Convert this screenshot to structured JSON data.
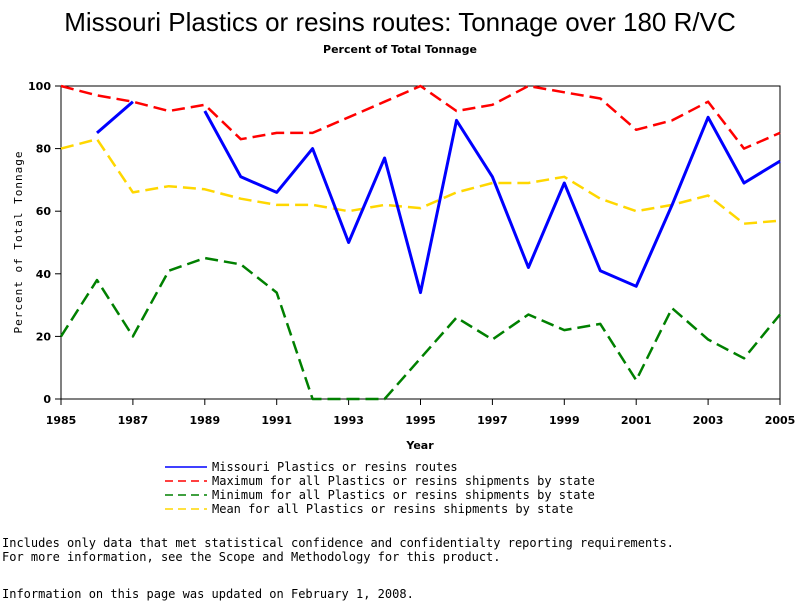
{
  "chart_data": {
    "type": "line",
    "title": "Missouri Plastics or resins routes: Tonnage over 180 R/VC",
    "subtitle": "Percent of Total Tonnage",
    "xlabel": "Year",
    "ylabel": "Percent of Total Tonnage",
    "xlim": [
      1985,
      2005
    ],
    "ylim": [
      0,
      100
    ],
    "xticks": [
      "1985",
      "1987",
      "1989",
      "1991",
      "1993",
      "1995",
      "1997",
      "1999",
      "2001",
      "2003",
      "2005"
    ],
    "yticks": [
      "0",
      "20",
      "40",
      "60",
      "80",
      "100"
    ],
    "grid": false,
    "legend_position": "bottom",
    "series": [
      {
        "name": "Missouri Plastics or resins routes",
        "color": "#0000ff",
        "style": "solid",
        "points": [
          [
            1986,
            85
          ],
          [
            1987,
            95
          ],
          [
            1988,
            null
          ],
          [
            1989,
            92
          ],
          [
            1990,
            71
          ],
          [
            1991,
            66
          ],
          [
            1992,
            80
          ],
          [
            1993,
            50
          ],
          [
            1994,
            77
          ],
          [
            1995,
            34
          ],
          [
            1996,
            89
          ],
          [
            1997,
            71
          ],
          [
            1998,
            42
          ],
          [
            1999,
            69
          ],
          [
            2000,
            41
          ],
          [
            2001,
            36
          ],
          [
            2002,
            62
          ],
          [
            2003,
            90
          ],
          [
            2004,
            69
          ],
          [
            2005,
            76
          ]
        ]
      },
      {
        "name": "Maximum for all Plastics or resins shipments by state",
        "color": "#ff0000",
        "style": "dashed",
        "points": [
          [
            1985,
            100
          ],
          [
            1986,
            97
          ],
          [
            1987,
            95
          ],
          [
            1988,
            92
          ],
          [
            1989,
            94
          ],
          [
            1990,
            83
          ],
          [
            1991,
            85
          ],
          [
            1992,
            85
          ],
          [
            1993,
            90
          ],
          [
            1994,
            95
          ],
          [
            1995,
            100
          ],
          [
            1996,
            92
          ],
          [
            1997,
            94
          ],
          [
            1998,
            100
          ],
          [
            1999,
            98
          ],
          [
            2000,
            96
          ],
          [
            2001,
            86
          ],
          [
            2002,
            89
          ],
          [
            2003,
            95
          ],
          [
            2004,
            80
          ],
          [
            2005,
            85
          ]
        ]
      },
      {
        "name": "Minimum for all Plastics or resins shipments by state",
        "color": "#008000",
        "style": "dashed",
        "points": [
          [
            1985,
            20
          ],
          [
            1986,
            38
          ],
          [
            1987,
            20
          ],
          [
            1988,
            41
          ],
          [
            1989,
            45
          ],
          [
            1990,
            43
          ],
          [
            1991,
            34
          ],
          [
            1992,
            0
          ],
          [
            1993,
            0
          ],
          [
            1994,
            0
          ],
          [
            1995,
            13
          ],
          [
            1996,
            26
          ],
          [
            1997,
            19
          ],
          [
            1998,
            27
          ],
          [
            1999,
            22
          ],
          [
            2000,
            24
          ],
          [
            2001,
            6
          ],
          [
            2002,
            29
          ],
          [
            2003,
            19
          ],
          [
            2004,
            13
          ],
          [
            2005,
            27
          ]
        ]
      },
      {
        "name": "Mean for all Plastics or resins shipments by state",
        "color": "#ffd700",
        "style": "dashed",
        "points": [
          [
            1985,
            80
          ],
          [
            1986,
            83
          ],
          [
            1987,
            66
          ],
          [
            1988,
            68
          ],
          [
            1989,
            67
          ],
          [
            1990,
            64
          ],
          [
            1991,
            62
          ],
          [
            1992,
            62
          ],
          [
            1993,
            60
          ],
          [
            1994,
            62
          ],
          [
            1995,
            61
          ],
          [
            1996,
            66
          ],
          [
            1997,
            69
          ],
          [
            1998,
            69
          ],
          [
            1999,
            71
          ],
          [
            2000,
            64
          ],
          [
            2001,
            60
          ],
          [
            2002,
            62
          ],
          [
            2003,
            65
          ],
          [
            2004,
            56
          ],
          [
            2005,
            57
          ]
        ]
      }
    ]
  },
  "footnotes": {
    "line1": "Includes only data that met statistical confidence and confidentialty reporting requirements.",
    "line2": "For more information, see the Scope and Methodology for this product.",
    "updated": "Information on this page was updated on February 1, 2008."
  }
}
